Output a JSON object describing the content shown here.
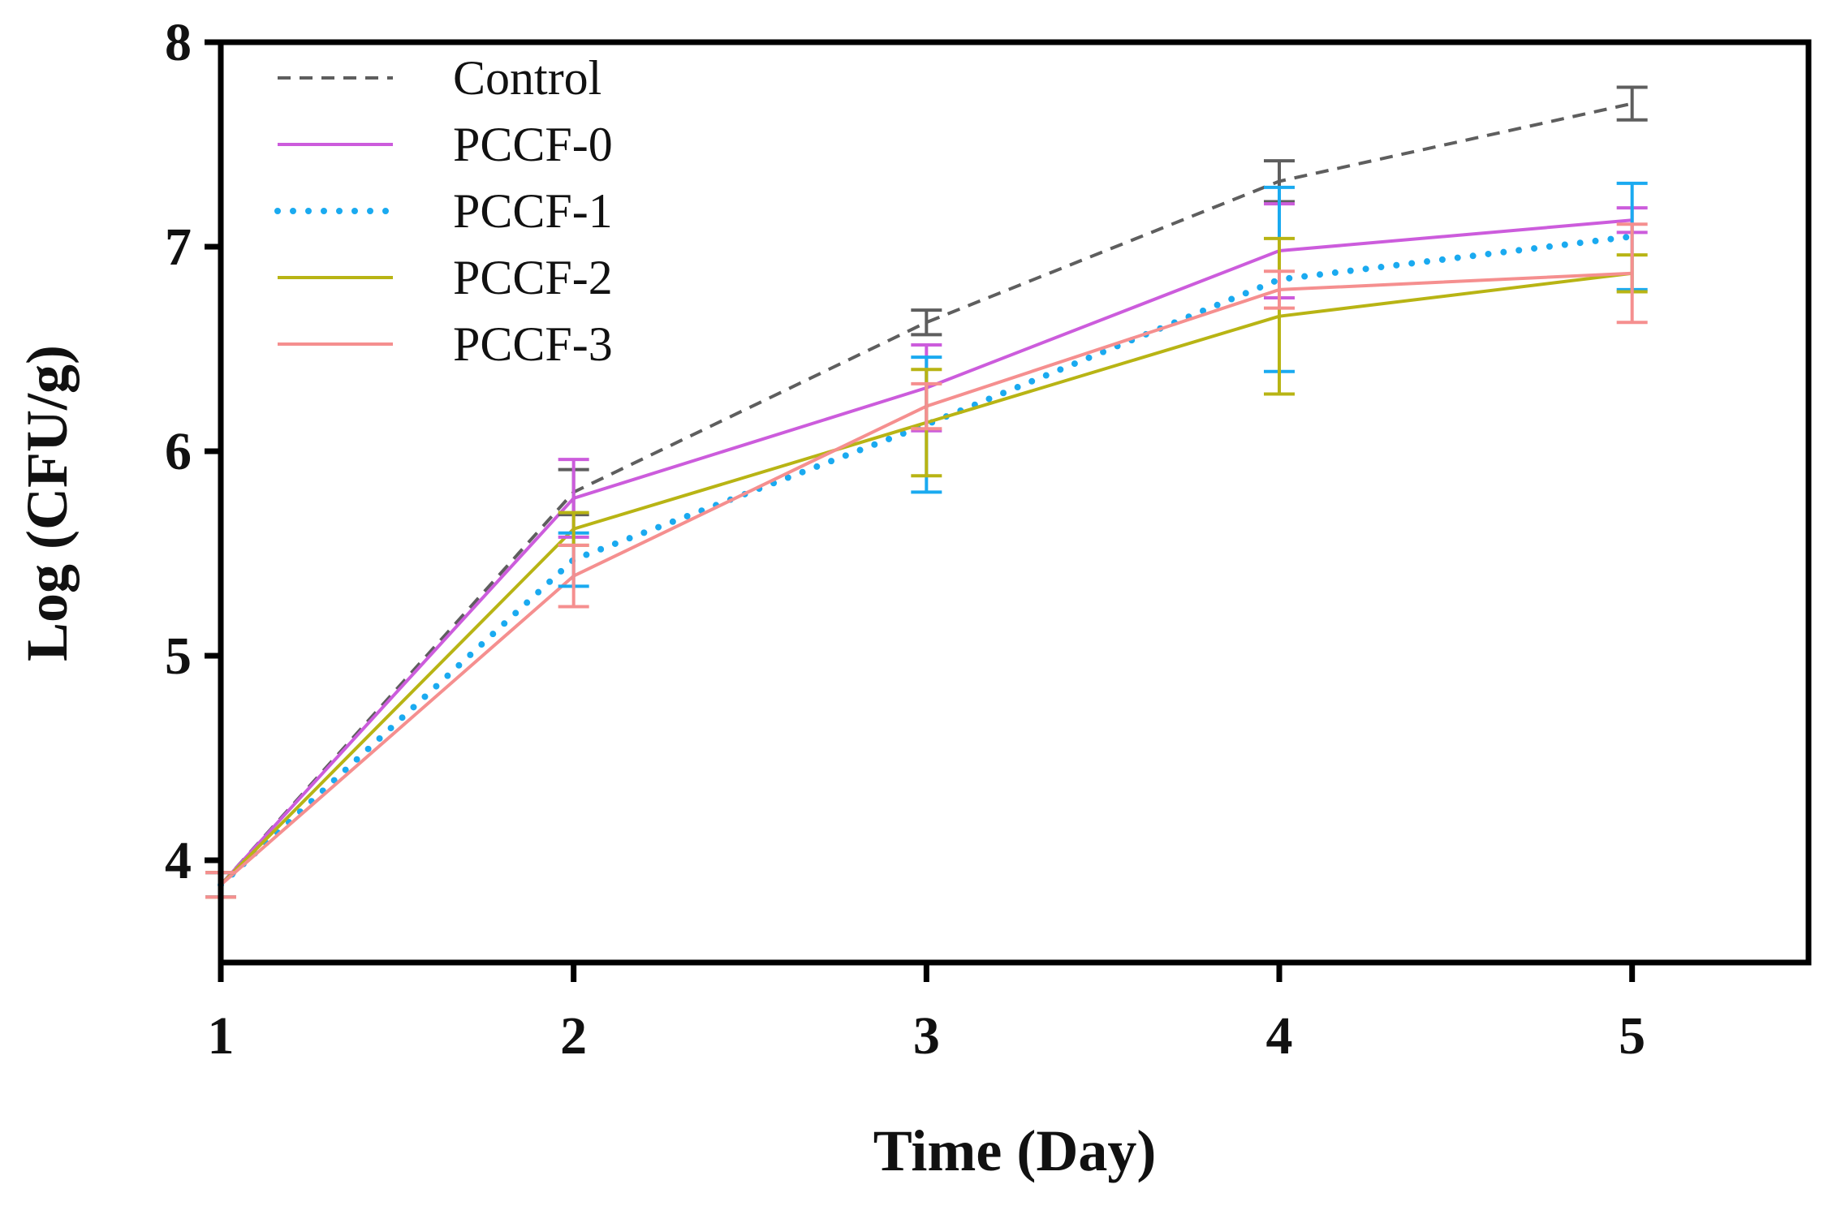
{
  "chart_data": {
    "type": "line",
    "title": "",
    "xlabel": "Time (Day)",
    "ylabel": "Log (CFU/g)",
    "x": [
      1,
      2,
      3,
      4,
      5
    ],
    "x_ticks": [
      "1",
      "2",
      "3",
      "4",
      "5"
    ],
    "y_ticks": [
      "4",
      "5",
      "6",
      "7",
      "8"
    ],
    "xlim": [
      1,
      5.5
    ],
    "ylim": [
      3.5,
      8
    ],
    "grid": false,
    "legend_position": "top-left",
    "series": [
      {
        "name": "Control",
        "color": "#5e5e5e",
        "style": "dashed",
        "values": [
          3.88,
          5.8,
          6.63,
          7.32,
          7.7
        ],
        "errors": [
          0.06,
          0.11,
          0.06,
          0.1,
          0.08
        ]
      },
      {
        "name": "PCCF-0",
        "color": "#cc5cdc",
        "style": "solid",
        "values": [
          3.88,
          5.77,
          6.31,
          6.98,
          7.13
        ],
        "errors": [
          0.06,
          0.19,
          0.21,
          0.23,
          0.06
        ]
      },
      {
        "name": "PCCF-1",
        "color": "#1aaaf0",
        "style": "dotted",
        "values": [
          3.88,
          5.47,
          6.13,
          6.84,
          7.05
        ],
        "errors": [
          0.06,
          0.13,
          0.33,
          0.45,
          0.26
        ]
      },
      {
        "name": "PCCF-2",
        "color": "#b8b414",
        "style": "solid",
        "values": [
          3.88,
          5.62,
          6.14,
          6.66,
          6.87
        ],
        "errors": [
          0.06,
          0.08,
          0.26,
          0.38,
          0.09
        ]
      },
      {
        "name": "PCCF-3",
        "color": "#f58f8f",
        "style": "solid",
        "values": [
          3.88,
          5.39,
          6.22,
          6.79,
          6.87
        ],
        "errors": [
          0.06,
          0.15,
          0.11,
          0.09,
          0.24
        ]
      }
    ]
  }
}
